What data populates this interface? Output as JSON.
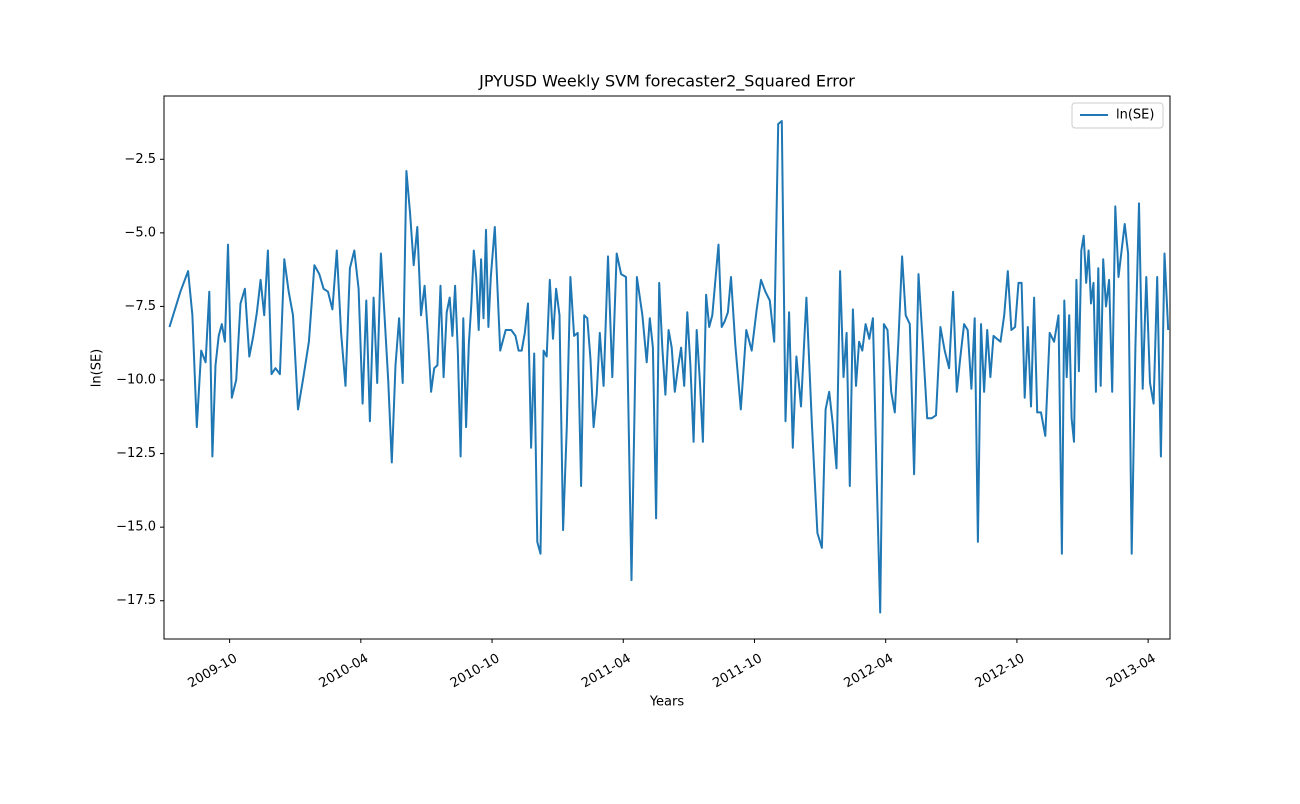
{
  "chart_data": {
    "type": "line",
    "title": "JPYUSD Weekly SVM forecaster2_Squared Error",
    "xlabel": "Years",
    "ylabel": "ln(SE)",
    "legend": "upper right",
    "xlim": [
      "2009-07",
      "2013-05"
    ],
    "xticks": [
      "2009-10",
      "2010-04",
      "2010-10",
      "2011-04",
      "2011-10",
      "2012-04",
      "2012-10",
      "2013-04"
    ],
    "ylim": [
      -18.8,
      -0.35
    ],
    "yticks": [
      {
        "value": -2.5,
        "label": "−2.5"
      },
      {
        "value": -5,
        "label": "−5.0"
      },
      {
        "value": -7.5,
        "label": "−7.5"
      },
      {
        "value": -10,
        "label": "−10.0"
      },
      {
        "value": -12.5,
        "label": "−12.5"
      },
      {
        "value": -15,
        "label": "−15.0"
      },
      {
        "value": -17.5,
        "label": "−17.5"
      }
    ],
    "x": [
      "2009-07",
      "2009-07",
      "2009-08",
      "2009-08",
      "2009-08",
      "2009-08",
      "2009-08",
      "2009-09",
      "2009-09",
      "2009-09",
      "2009-09",
      "2009-09",
      "2009-09",
      "2009-09",
      "2009-10",
      "2009-10",
      "2009-10",
      "2009-10",
      "2009-10",
      "2009-11",
      "2009-11",
      "2009-11",
      "2009-11",
      "2009-11",
      "2009-11",
      "2009-12",
      "2009-12",
      "2009-12",
      "2009-12",
      "2009-12",
      "2010-01",
      "2010-01",
      "2010-01",
      "2010-01",
      "2010-02",
      "2010-02",
      "2010-02",
      "2010-02",
      "2010-02",
      "2010-03",
      "2010-03",
      "2010-03",
      "2010-03",
      "2010-03",
      "2010-04",
      "2010-04",
      "2010-04",
      "2010-04",
      "2010-04",
      "2010-04",
      "2010-05",
      "2010-05",
      "2010-05",
      "2010-05",
      "2010-05",
      "2010-05",
      "2010-06",
      "2010-06",
      "2010-06",
      "2010-06",
      "2010-06",
      "2010-06",
      "2010-07",
      "2010-07",
      "2010-07",
      "2010-07",
      "2010-07",
      "2010-07",
      "2010-07",
      "2010-08",
      "2010-08",
      "2010-08",
      "2010-08",
      "2010-08",
      "2010-08",
      "2010-08",
      "2010-08",
      "2010-09",
      "2010-09",
      "2010-09",
      "2010-09",
      "2010-09",
      "2010-09",
      "2010-09",
      "2010-09",
      "2010-09",
      "2010-10",
      "2010-10",
      "2010-10",
      "2010-10",
      "2010-11",
      "2010-11",
      "2010-11",
      "2010-11",
      "2010-11",
      "2010-11",
      "2010-11",
      "2010-12",
      "2010-12",
      "2010-12",
      "2010-12",
      "2010-12",
      "2010-12",
      "2010-12",
      "2011-01",
      "2011-01",
      "2011-01",
      "2011-01",
      "2011-01",
      "2011-01",
      "2011-02",
      "2011-02",
      "2011-02",
      "2011-02",
      "2011-02",
      "2011-02",
      "2011-02",
      "2011-03",
      "2011-03",
      "2011-03",
      "2011-03",
      "2011-03",
      "2011-04",
      "2011-04",
      "2011-04",
      "2011-04",
      "2011-05",
      "2011-05",
      "2011-05",
      "2011-05",
      "2011-05",
      "2011-05",
      "2011-05",
      "2011-06",
      "2011-06",
      "2011-06",
      "2011-06",
      "2011-06",
      "2011-06",
      "2011-06",
      "2011-07",
      "2011-07",
      "2011-07",
      "2011-07",
      "2011-07",
      "2011-07",
      "2011-07",
      "2011-08",
      "2011-08",
      "2011-08",
      "2011-08",
      "2011-08",
      "2011-08",
      "2011-08",
      "2011-09",
      "2011-09",
      "2011-09",
      "2011-09",
      "2011-10",
      "2011-10",
      "2011-10",
      "2011-10",
      "2011-10",
      "2011-11",
      "2011-11",
      "2011-11",
      "2011-11",
      "2011-11",
      "2011-11",
      "2011-12",
      "2011-12",
      "2011-12",
      "2011-12",
      "2012-01",
      "2012-01",
      "2012-01",
      "2012-01",
      "2012-01",
      "2012-01",
      "2012-02",
      "2012-02",
      "2012-02",
      "2012-02",
      "2012-02",
      "2012-02",
      "2012-02",
      "2012-03",
      "2012-03",
      "2012-03",
      "2012-03",
      "2012-03",
      "2012-03",
      "2012-04",
      "2012-04",
      "2012-04",
      "2012-04",
      "2012-04",
      "2012-04",
      "2012-05",
      "2012-05",
      "2012-05",
      "2012-05",
      "2012-05",
      "2012-06",
      "2012-06",
      "2012-06",
      "2012-06",
      "2012-06",
      "2012-07",
      "2012-07",
      "2012-07",
      "2012-07",
      "2012-07",
      "2012-07",
      "2012-08",
      "2012-08",
      "2012-08",
      "2012-08",
      "2012-08",
      "2012-08",
      "2012-08",
      "2012-09",
      "2012-09",
      "2012-09",
      "2012-09",
      "2012-09",
      "2012-09",
      "2012-10",
      "2012-10",
      "2012-10",
      "2012-10",
      "2012-10",
      "2012-10",
      "2012-10",
      "2012-11",
      "2012-11",
      "2012-11",
      "2012-11",
      "2012-11",
      "2012-12",
      "2012-12",
      "2012-12",
      "2012-12",
      "2012-12",
      "2012-12",
      "2012-12",
      "2012-12",
      "2012-12",
      "2013-01",
      "2013-01",
      "2013-01",
      "2013-01",
      "2013-01",
      "2013-01",
      "2013-01",
      "2013-01",
      "2013-01",
      "2013-02",
      "2013-02",
      "2013-02",
      "2013-02",
      "2013-02",
      "2013-02",
      "2013-02",
      "2013-03",
      "2013-03",
      "2013-03",
      "2013-03",
      "2013-03",
      "2013-03",
      "2013-04",
      "2013-04",
      "2013-04",
      "2013-04",
      "2013-04",
      "2013-04"
    ],
    "series": [
      {
        "name": "ln(SE)",
        "color": "#1f77b4",
        "values": [
          -8.2,
          -7.0,
          -6.3,
          -7.8,
          -11.6,
          -9.0,
          -9.4,
          -7.0,
          -12.6,
          -9.5,
          -8.5,
          -8.1,
          -8.7,
          -5.4,
          -10.6,
          -10.0,
          -7.4,
          -6.9,
          -9.2,
          -8.5,
          -7.7,
          -6.6,
          -7.8,
          -5.6,
          -9.8,
          -9.6,
          -9.8,
          -5.9,
          -7.0,
          -7.8,
          -11.0,
          -9.9,
          -8.7,
          -6.1,
          -6.4,
          -6.9,
          -7.0,
          -7.6,
          -5.6,
          -8.4,
          -10.2,
          -6.2,
          -5.6,
          -6.9,
          -10.8,
          -7.3,
          -11.4,
          -7.2,
          -10.1,
          -5.7,
          -7.8,
          -10.0,
          -12.8,
          -9.5,
          -7.9,
          -10.1,
          -2.9,
          -4.3,
          -6.1,
          -4.8,
          -7.8,
          -6.8,
          -8.5,
          -10.4,
          -9.6,
          -9.5,
          -6.8,
          -9.9,
          -7.7,
          -7.2,
          -8.5,
          -6.8,
          -9.1,
          -12.6,
          -7.9,
          -11.6,
          -8.8,
          -7.4,
          -5.6,
          -6.5,
          -8.3,
          -5.9,
          -7.9,
          -4.9,
          -8.2,
          -6.5,
          -4.8,
          -9.0,
          -8.3,
          -8.3,
          -8.5,
          -9.0,
          -9.0,
          -8.4,
          -7.4,
          -12.3,
          -9.1,
          -15.5,
          -15.9,
          -9.0,
          -9.2,
          -6.6,
          -8.6,
          -6.9,
          -7.8,
          -15.1,
          -11.6,
          -6.5,
          -8.5,
          -8.4,
          -13.6,
          -7.8,
          -7.9,
          -9.3,
          -11.6,
          -10.5,
          -8.4,
          -10.2,
          -5.8,
          -9.9,
          -5.7,
          -6.4,
          -6.5,
          -16.8,
          -6.5,
          -7.8,
          -9.4,
          -7.9,
          -8.9,
          -14.7,
          -6.7,
          -8.9,
          -10.5,
          -8.3,
          -8.9,
          -10.4,
          -9.6,
          -8.9,
          -10.2,
          -7.7,
          -9.5,
          -12.1,
          -8.3,
          -10.0,
          -12.1,
          -7.1,
          -8.2,
          -7.8,
          -6.6,
          -5.4,
          -8.2,
          -8.0,
          -7.7,
          -6.5,
          -8.8,
          -11.0,
          -8.3,
          -9.0,
          -7.6,
          -6.6,
          -7.0,
          -7.3,
          -8.7,
          -1.3,
          -1.2,
          -11.4,
          -7.7,
          -12.3,
          -9.2,
          -10.9,
          -7.2,
          -11.5,
          -15.2,
          -15.7,
          -11.0,
          -10.4,
          -11.5,
          -13.0,
          -6.3,
          -9.9,
          -8.4,
          -13.6,
          -7.6,
          -10.2,
          -8.7,
          -9.0,
          -8.1,
          -8.6,
          -7.9,
          -13.2,
          -17.9,
          -8.1,
          -8.3,
          -10.4,
          -11.1,
          -8.6,
          -5.8,
          -7.8,
          -8.1,
          -13.2,
          -6.4,
          -8.8,
          -11.3,
          -11.3,
          -11.2,
          -8.2,
          -9.0,
          -9.6,
          -7.0,
          -10.4,
          -9.2,
          -8.1,
          -8.3,
          -10.3,
          -7.9,
          -15.5,
          -8.1,
          -10.4,
          -8.3,
          -9.9,
          -8.5,
          -8.6,
          -8.7,
          -7.8,
          -6.3,
          -8.3,
          -8.2,
          -6.7,
          -6.7,
          -10.6,
          -8.2,
          -10.9,
          -7.2,
          -11.1,
          -11.1,
          -11.9,
          -8.4,
          -8.7,
          -7.8,
          -15.9,
          -7.3,
          -9.9,
          -7.8,
          -11.3,
          -12.1,
          -6.6,
          -9.7,
          -5.6,
          -5.1,
          -6.7,
          -5.6,
          -7.4,
          -6.7,
          -10.4,
          -6.2,
          -10.2,
          -5.9,
          -7.5,
          -6.6,
          -10.4,
          -4.1,
          -6.5,
          -5.6,
          -4.7,
          -5.7,
          -15.9,
          -8.9,
          -4.0,
          -10.3,
          -6.5,
          -10.1,
          -10.8,
          -6.5,
          -12.6,
          -5.7,
          -8.3
        ]
      }
    ]
  }
}
